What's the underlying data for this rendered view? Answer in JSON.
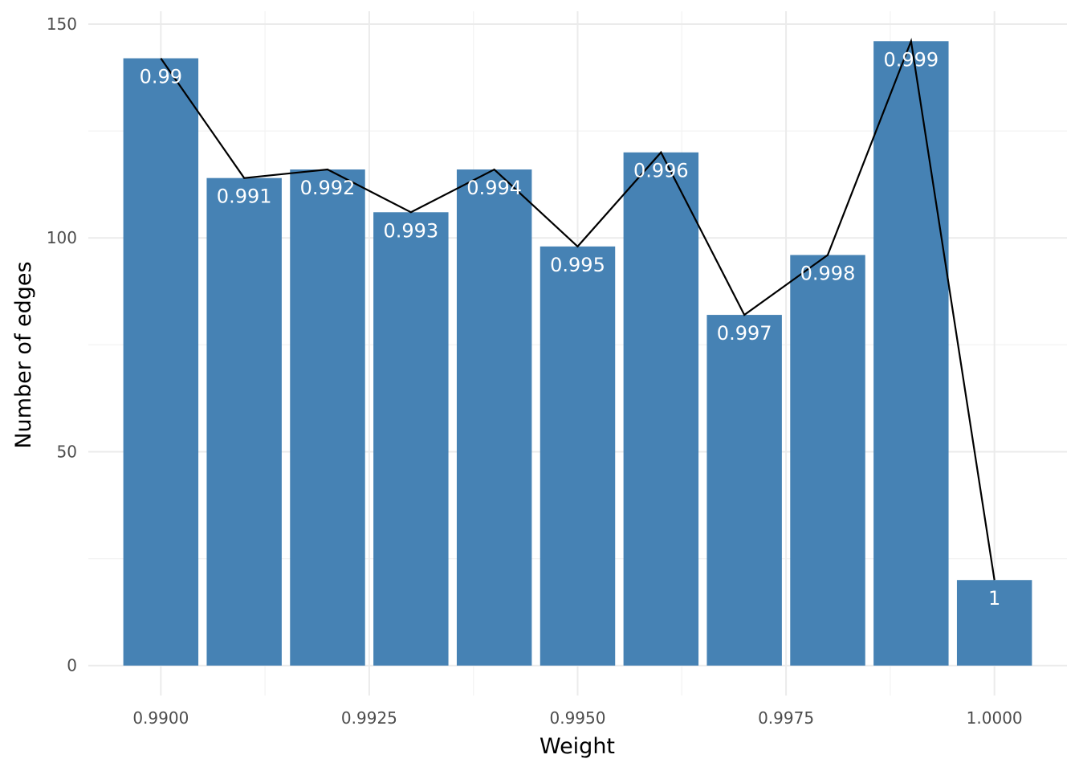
{
  "chart_data": {
    "type": "bar",
    "title": "",
    "xlabel": "Weight",
    "ylabel": "Number of edges",
    "x": [
      0.99,
      0.991,
      0.992,
      0.993,
      0.994,
      0.995,
      0.996,
      0.997,
      0.998,
      0.999,
      1.0
    ],
    "values": [
      142,
      114,
      116,
      106,
      116,
      98,
      120,
      82,
      96,
      146,
      20
    ],
    "bar_labels": [
      "0.99",
      "0.991",
      "0.992",
      "0.993",
      "0.994",
      "0.995",
      "0.996",
      "0.997",
      "0.998",
      "0.999",
      "1"
    ],
    "line_overlay": {
      "x": [
        0.99,
        0.991,
        0.992,
        0.993,
        0.994,
        0.995,
        0.996,
        0.997,
        0.998,
        0.999,
        1.0
      ],
      "values": [
        142,
        114,
        116,
        106,
        116,
        98,
        120,
        82,
        96,
        146,
        20
      ],
      "color": "#000000"
    },
    "x_ticks": [
      0.99,
      0.9925,
      0.995,
      0.9975,
      1.0
    ],
    "x_tick_labels": [
      "0.9900",
      "0.9925",
      "0.9950",
      "0.9975",
      "1.0000"
    ],
    "y_ticks": [
      0,
      50,
      100,
      150
    ],
    "y_tick_labels": [
      "0",
      "50",
      "100",
      "150"
    ],
    "xlim": [
      0.98913,
      1.00087
    ],
    "ylim": [
      -7,
      153
    ],
    "bar_width": 0.0009,
    "grid": true,
    "bar_color": "#4682b4",
    "bar_label_color": "#ffffff"
  }
}
